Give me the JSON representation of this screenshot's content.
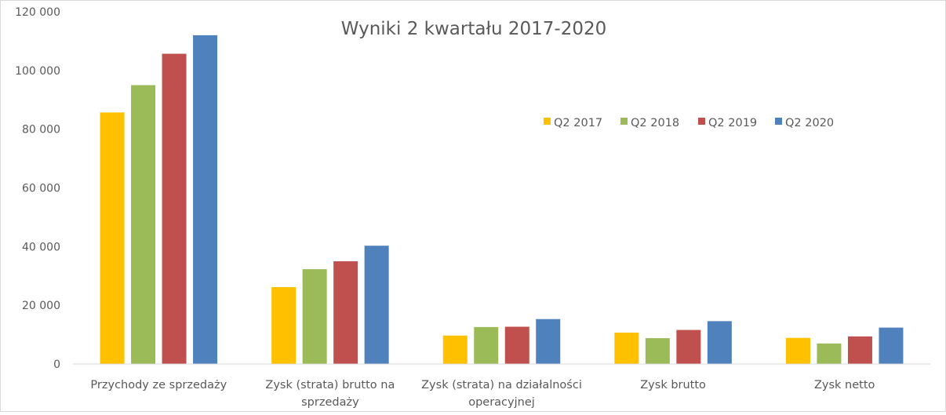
{
  "chart_data": {
    "type": "bar",
    "title": "Wyniki 2 kwartału 2017-2020",
    "xlabel": "",
    "ylabel": "",
    "ylim": [
      0,
      120000
    ],
    "yticks": [
      0,
      20000,
      40000,
      60000,
      80000,
      100000,
      120000
    ],
    "ytick_labels": [
      "0",
      "20 000",
      "40 000",
      "60 000",
      "80 000",
      "100 000",
      "120 000"
    ],
    "grid": false,
    "legend_position": "right",
    "categories": [
      [
        "Przychody ze sprzedaży"
      ],
      [
        "Zysk (strata) brutto na",
        "sprzedaży"
      ],
      [
        "Zysk (strata) na działalności",
        "operacyjnej"
      ],
      [
        "Zysk brutto"
      ],
      [
        "Zysk netto"
      ]
    ],
    "series": [
      {
        "name": "Q2 2017",
        "color": "#FFC000",
        "values": [
          85700,
          26200,
          9700,
          10700,
          8900
        ]
      },
      {
        "name": "Q2 2018",
        "color": "#9BBB59",
        "values": [
          95000,
          32300,
          12600,
          8800,
          7000
        ]
      },
      {
        "name": "Q2 2019",
        "color": "#C0504D",
        "values": [
          105700,
          35000,
          12700,
          11600,
          9400
        ]
      },
      {
        "name": "Q2 2020",
        "color": "#4F81BD",
        "values": [
          112000,
          40300,
          15300,
          14600,
          12400
        ]
      }
    ]
  }
}
